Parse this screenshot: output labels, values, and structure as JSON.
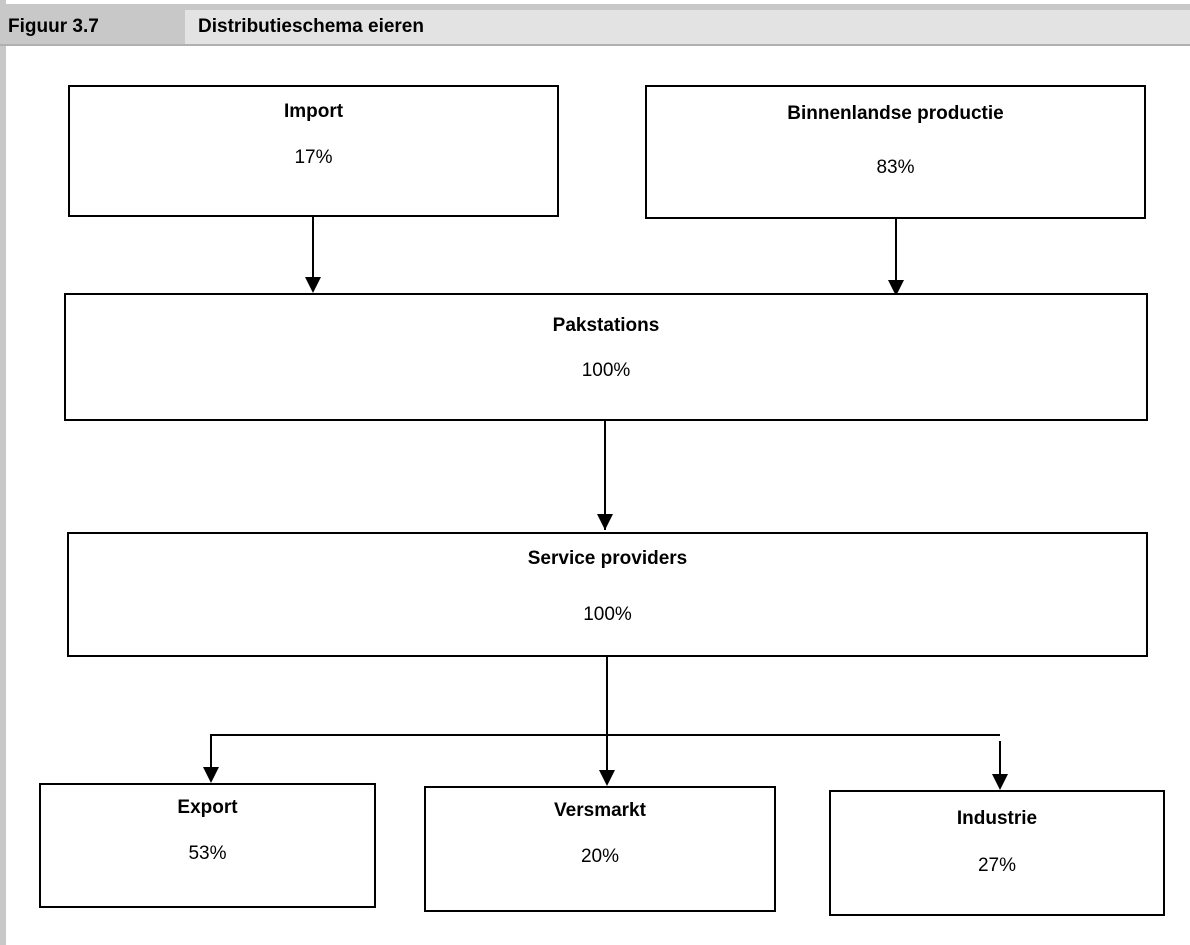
{
  "header": {
    "figure_number": "Figuur 3.7",
    "title": "Distributieschema eieren"
  },
  "nodes": {
    "import": {
      "label": "Import",
      "value": "17%"
    },
    "binnenlandse_productie": {
      "label": "Binnenlandse productie",
      "value": "83%"
    },
    "pakstations": {
      "label": "Pakstations",
      "value": "100%"
    },
    "service_providers": {
      "label": "Service providers",
      "value": "100%"
    },
    "export": {
      "label": "Export",
      "value": "53%"
    },
    "versmarkt": {
      "label": "Versmarkt",
      "value": "20%"
    },
    "industrie": {
      "label": "Industrie",
      "value": "27%"
    }
  },
  "edges": [
    {
      "from": "import",
      "to": "pakstations"
    },
    {
      "from": "binnenlandse_productie",
      "to": "pakstations"
    },
    {
      "from": "pakstations",
      "to": "service_providers"
    },
    {
      "from": "service_providers",
      "to": "export"
    },
    {
      "from": "service_providers",
      "to": "versmarkt"
    },
    {
      "from": "service_providers",
      "to": "industrie"
    }
  ]
}
